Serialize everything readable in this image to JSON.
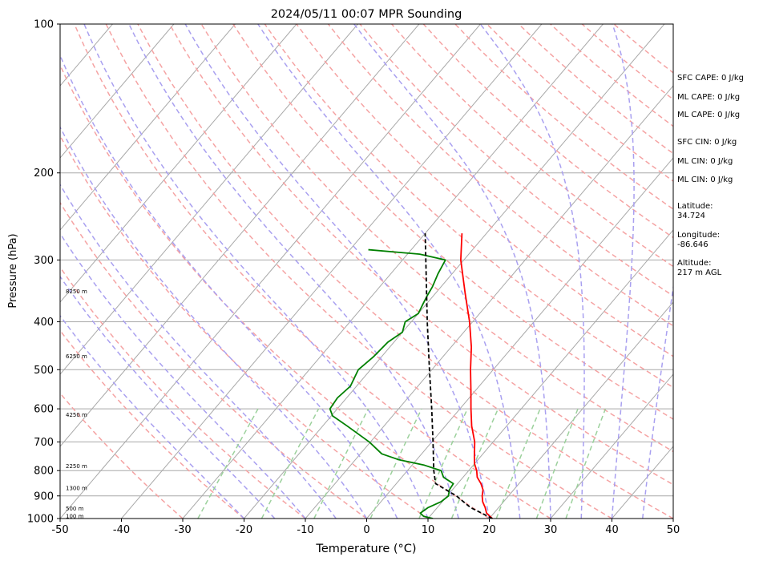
{
  "chart_data": {
    "type": "line",
    "subtype": "skew-T log-P sounding",
    "title": "2024/05/11 00:07 MPR Sounding",
    "xlabel": "Temperature (°C)",
    "ylabel": "Pressure (hPa)",
    "xlim": [
      -50,
      50
    ],
    "ylim": [
      1000,
      100
    ],
    "yscale": "log",
    "x_ticks": [
      -50,
      -40,
      -30,
      -20,
      -10,
      0,
      10,
      20,
      30,
      40,
      50
    ],
    "y_ticks": [
      1000,
      900,
      800,
      700,
      600,
      500,
      400,
      300,
      200,
      100
    ],
    "grid": true,
    "series": [
      {
        "color": "#ff0000",
        "style": "solid",
        "points": [
          [
            1000,
            20.5
          ],
          [
            975,
            18.8
          ],
          [
            950,
            17.8
          ],
          [
            925,
            16.6
          ],
          [
            900,
            15.7
          ],
          [
            875,
            15.0
          ],
          [
            850,
            13.8
          ],
          [
            825,
            12.3
          ],
          [
            800,
            11.3
          ],
          [
            775,
            10.0
          ],
          [
            750,
            9.0
          ],
          [
            700,
            7.0
          ],
          [
            650,
            4.3
          ],
          [
            600,
            1.8
          ],
          [
            550,
            -0.8
          ],
          [
            500,
            -3.7
          ],
          [
            450,
            -6.7
          ],
          [
            400,
            -10.5
          ],
          [
            350,
            -15.2
          ],
          [
            300,
            -20.5
          ],
          [
            265,
            -24.0
          ]
        ]
      },
      {
        "color": "#008000",
        "style": "solid",
        "points": [
          [
            1000,
            10.8
          ],
          [
            990,
            9.0
          ],
          [
            975,
            8.0
          ],
          [
            950,
            8.5
          ],
          [
            925,
            9.8
          ],
          [
            900,
            10.2
          ],
          [
            875,
            9.5
          ],
          [
            850,
            9.3
          ],
          [
            825,
            6.8
          ],
          [
            800,
            5.5
          ],
          [
            780,
            2.0
          ],
          [
            760,
            -3.0
          ],
          [
            740,
            -6.5
          ],
          [
            700,
            -10.2
          ],
          [
            650,
            -16.0
          ],
          [
            620,
            -19.8
          ],
          [
            600,
            -21.2
          ],
          [
            570,
            -21.5
          ],
          [
            540,
            -21.0
          ],
          [
            500,
            -22.0
          ],
          [
            470,
            -21.3
          ],
          [
            440,
            -21.0
          ],
          [
            420,
            -20.0
          ],
          [
            400,
            -21.0
          ],
          [
            385,
            -20.0
          ],
          [
            370,
            -20.5
          ],
          [
            355,
            -21.0
          ],
          [
            340,
            -21.4
          ],
          [
            320,
            -22.3
          ],
          [
            300,
            -23.0
          ],
          [
            292,
            -28.0
          ],
          [
            286,
            -37.0
          ]
        ]
      },
      {
        "color": "#000000",
        "style": "dashed",
        "points": [
          [
            1000,
            20.5
          ],
          [
            950,
            15.4
          ],
          [
            900,
            11.5
          ],
          [
            850,
            6.4
          ],
          [
            800,
            4.3
          ],
          [
            700,
            0.2
          ],
          [
            600,
            -4.6
          ],
          [
            500,
            -10.4
          ],
          [
            400,
            -17.4
          ],
          [
            300,
            -26.2
          ],
          [
            265,
            -30.0
          ]
        ]
      }
    ],
    "altitude_markers": [
      {
        "pressure": 988,
        "label": "100 m"
      },
      {
        "pressure": 955,
        "label": "500 m"
      },
      {
        "pressure": 868,
        "label": "1300 m"
      },
      {
        "pressure": 783,
        "label": "2250 m"
      },
      {
        "pressure": 617,
        "label": "4250 m"
      },
      {
        "pressure": 470,
        "label": "6250 m"
      },
      {
        "pressure": 347,
        "label": "8250 m"
      }
    ]
  },
  "info_panel": {
    "sfc_cape": "SFC CAPE: 0 J/kg",
    "ml_cape_1": "ML CAPE: 0 J/kg",
    "ml_cape_2": "ML CAPE: 0 J/kg",
    "sfc_cin": "SFC CIN: 0 J/kg",
    "ml_cin_1": "ML CIN: 0 J/kg",
    "ml_cin_2": "ML CIN: 0 J/kg",
    "latitude_label": "Latitude:",
    "latitude_value": "34.724",
    "longitude_label": "Longitude:",
    "longitude_value": "-86.646",
    "altitude_label": "Altitude:",
    "altitude_value": "217 m AGL"
  },
  "colors": {
    "temperature": "#ff0000",
    "dewpoint": "#008000",
    "parcel": "#000000",
    "dry_adiabat": "#f5a3a3",
    "moist_adiabat": "#a9a0f0",
    "mixing_ratio": "#9cd19c",
    "isotherm": "#a8a8a8"
  }
}
